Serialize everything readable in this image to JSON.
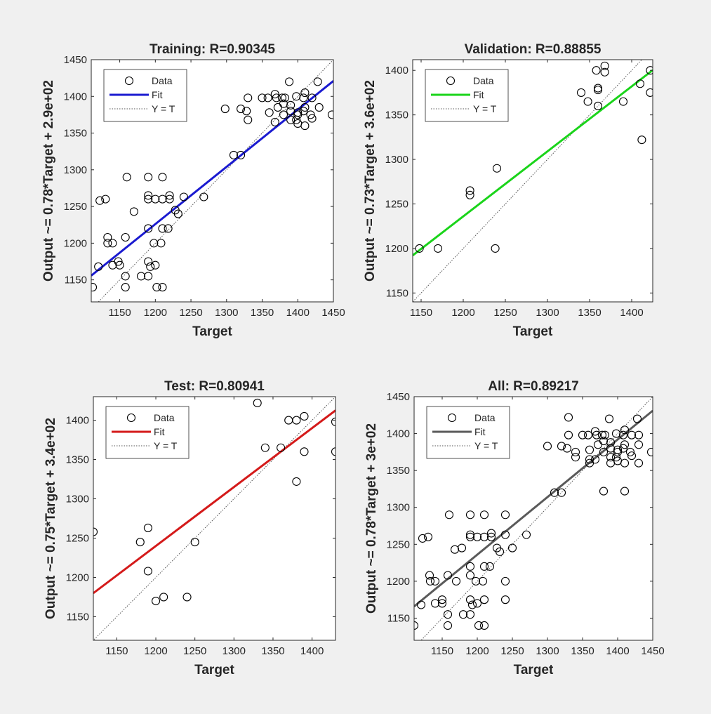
{
  "colors": {
    "background": "#f0f0f0",
    "axes_bg": "#ffffff",
    "data_marker": "#000000",
    "identity_line": "#555555"
  },
  "legend_labels": {
    "data": "Data",
    "fit": "Fit",
    "identity": "Y = T"
  },
  "chart_data": [
    {
      "type": "scatter",
      "title": "Training: R=0.90345",
      "xlabel": "Target",
      "ylabel": "Output ~= 0.78*Target + 2.9e+02",
      "xlim": [
        1110,
        1450
      ],
      "ylim": [
        1120,
        1450
      ],
      "xticks": [
        1150,
        1200,
        1250,
        1300,
        1350,
        1400,
        1450
      ],
      "yticks": [
        1150,
        1200,
        1250,
        1300,
        1350,
        1400,
        1450
      ],
      "fit": {
        "slope": 0.78,
        "intercept": 290,
        "color": "#1a1ad0"
      },
      "legend": "top-left",
      "grid": false,
      "points": [
        [
          1112,
          1140
        ],
        [
          1120,
          1168
        ],
        [
          1122,
          1258
        ],
        [
          1130,
          1260
        ],
        [
          1133,
          1208
        ],
        [
          1133,
          1200
        ],
        [
          1140,
          1200
        ],
        [
          1140,
          1170
        ],
        [
          1148,
          1175
        ],
        [
          1150,
          1170
        ],
        [
          1158,
          1155
        ],
        [
          1158,
          1140
        ],
        [
          1158,
          1208
        ],
        [
          1160,
          1290
        ],
        [
          1170,
          1243
        ],
        [
          1180,
          1155
        ],
        [
          1190,
          1155
        ],
        [
          1190,
          1175
        ],
        [
          1190,
          1220
        ],
        [
          1190,
          1260
        ],
        [
          1190,
          1265
        ],
        [
          1190,
          1290
        ],
        [
          1193,
          1168
        ],
        [
          1198,
          1200
        ],
        [
          1200,
          1260
        ],
        [
          1200,
          1170
        ],
        [
          1202,
          1140
        ],
        [
          1208,
          1200
        ],
        [
          1210,
          1260
        ],
        [
          1210,
          1290
        ],
        [
          1210,
          1140
        ],
        [
          1210,
          1220
        ],
        [
          1218,
          1220
        ],
        [
          1220,
          1265
        ],
        [
          1220,
          1260
        ],
        [
          1228,
          1245
        ],
        [
          1232,
          1240
        ],
        [
          1240,
          1263
        ],
        [
          1268,
          1263
        ],
        [
          1298,
          1383
        ],
        [
          1310,
          1320
        ],
        [
          1320,
          1320
        ],
        [
          1320,
          1383
        ],
        [
          1328,
          1380
        ],
        [
          1330,
          1398
        ],
        [
          1330,
          1368
        ],
        [
          1350,
          1398
        ],
        [
          1358,
          1398
        ],
        [
          1360,
          1378
        ],
        [
          1368,
          1365
        ],
        [
          1368,
          1403
        ],
        [
          1370,
          1398
        ],
        [
          1372,
          1385
        ],
        [
          1378,
          1398
        ],
        [
          1380,
          1390
        ],
        [
          1380,
          1375
        ],
        [
          1382,
          1398
        ],
        [
          1388,
          1420
        ],
        [
          1390,
          1368
        ],
        [
          1390,
          1380
        ],
        [
          1390,
          1388
        ],
        [
          1398,
          1400
        ],
        [
          1398,
          1368
        ],
        [
          1400,
          1375
        ],
        [
          1400,
          1378
        ],
        [
          1400,
          1363
        ],
        [
          1408,
          1398
        ],
        [
          1408,
          1380
        ],
        [
          1410,
          1405
        ],
        [
          1410,
          1360
        ],
        [
          1410,
          1385
        ],
        [
          1418,
          1375
        ],
        [
          1420,
          1398
        ],
        [
          1420,
          1370
        ],
        [
          1428,
          1420
        ],
        [
          1430,
          1385
        ],
        [
          1448,
          1375
        ]
      ]
    },
    {
      "type": "scatter",
      "title": "Validation: R=0.88855",
      "xlabel": "Target",
      "ylabel": "Output ~= 0.73*Target + 3.6e+02",
      "xlim": [
        1140,
        1425
      ],
      "ylim": [
        1140,
        1412
      ],
      "xticks": [
        1150,
        1200,
        1250,
        1300,
        1350,
        1400
      ],
      "yticks": [
        1150,
        1200,
        1250,
        1300,
        1350,
        1400
      ],
      "fit": {
        "slope": 0.73,
        "intercept": 360,
        "color": "#1ad41a"
      },
      "legend": "top-left",
      "grid": false,
      "points": [
        [
          1148,
          1200
        ],
        [
          1170,
          1200
        ],
        [
          1208,
          1260
        ],
        [
          1208,
          1265
        ],
        [
          1238,
          1200
        ],
        [
          1240,
          1290
        ],
        [
          1340,
          1375
        ],
        [
          1348,
          1365
        ],
        [
          1358,
          1400
        ],
        [
          1360,
          1360
        ],
        [
          1360,
          1380
        ],
        [
          1360,
          1378
        ],
        [
          1368,
          1405
        ],
        [
          1368,
          1398
        ],
        [
          1390,
          1365
        ],
        [
          1410,
          1385
        ],
        [
          1412,
          1322
        ],
        [
          1422,
          1400
        ],
        [
          1422,
          1375
        ]
      ]
    },
    {
      "type": "scatter",
      "title": "Test: R=0.80941",
      "xlabel": "Target",
      "ylabel": "Output ~= 0.75*Target + 3.4e+02",
      "xlim": [
        1120,
        1430
      ],
      "ylim": [
        1120,
        1430
      ],
      "xticks": [
        1150,
        1200,
        1250,
        1300,
        1350,
        1400
      ],
      "yticks": [
        1150,
        1200,
        1250,
        1300,
        1350,
        1400
      ],
      "fit": {
        "slope": 0.75,
        "intercept": 340,
        "color": "#d41a1a"
      },
      "legend": "top-left",
      "grid": false,
      "points": [
        [
          1120,
          1258
        ],
        [
          1180,
          1245
        ],
        [
          1190,
          1208
        ],
        [
          1190,
          1263
        ],
        [
          1200,
          1170
        ],
        [
          1210,
          1175
        ],
        [
          1240,
          1175
        ],
        [
          1250,
          1245
        ],
        [
          1330,
          1422
        ],
        [
          1340,
          1365
        ],
        [
          1360,
          1365
        ],
        [
          1370,
          1400
        ],
        [
          1380,
          1400
        ],
        [
          1380,
          1322
        ],
        [
          1390,
          1360
        ],
        [
          1390,
          1405
        ],
        [
          1430,
          1398
        ],
        [
          1430,
          1360
        ]
      ]
    },
    {
      "type": "scatter",
      "title": "All: R=0.89217",
      "xlabel": "Target",
      "ylabel": "Output ~= 0.78*Target + 3e+02",
      "xlim": [
        1110,
        1450
      ],
      "ylim": [
        1120,
        1450
      ],
      "xticks": [
        1150,
        1200,
        1250,
        1300,
        1350,
        1400,
        1450
      ],
      "yticks": [
        1150,
        1200,
        1250,
        1300,
        1350,
        1400,
        1450
      ],
      "fit": {
        "slope": 0.78,
        "intercept": 300,
        "color": "#5a5a5a"
      },
      "legend": "top-left",
      "grid": false,
      "points": [
        [
          1110,
          1140
        ],
        [
          1120,
          1168
        ],
        [
          1122,
          1258
        ],
        [
          1130,
          1260
        ],
        [
          1132,
          1208
        ],
        [
          1133,
          1200
        ],
        [
          1140,
          1200
        ],
        [
          1140,
          1170
        ],
        [
          1150,
          1175
        ],
        [
          1150,
          1170
        ],
        [
          1158,
          1155
        ],
        [
          1158,
          1140
        ],
        [
          1158,
          1208
        ],
        [
          1160,
          1290
        ],
        [
          1168,
          1243
        ],
        [
          1170,
          1200
        ],
        [
          1178,
          1245
        ],
        [
          1180,
          1155
        ],
        [
          1190,
          1155
        ],
        [
          1190,
          1175
        ],
        [
          1190,
          1208
        ],
        [
          1190,
          1220
        ],
        [
          1190,
          1260
        ],
        [
          1190,
          1263
        ],
        [
          1190,
          1290
        ],
        [
          1193,
          1168
        ],
        [
          1198,
          1200
        ],
        [
          1200,
          1260
        ],
        [
          1200,
          1170
        ],
        [
          1202,
          1140
        ],
        [
          1208,
          1200
        ],
        [
          1210,
          1260
        ],
        [
          1210,
          1290
        ],
        [
          1210,
          1140
        ],
        [
          1210,
          1220
        ],
        [
          1210,
          1175
        ],
        [
          1218,
          1220
        ],
        [
          1220,
          1265
        ],
        [
          1220,
          1260
        ],
        [
          1228,
          1245
        ],
        [
          1232,
          1240
        ],
        [
          1240,
          1263
        ],
        [
          1240,
          1175
        ],
        [
          1240,
          1200
        ],
        [
          1240,
          1290
        ],
        [
          1250,
          1245
        ],
        [
          1270,
          1263
        ],
        [
          1300,
          1383
        ],
        [
          1310,
          1320
        ],
        [
          1320,
          1320
        ],
        [
          1320,
          1383
        ],
        [
          1328,
          1380
        ],
        [
          1330,
          1398
        ],
        [
          1330,
          1422
        ],
        [
          1340,
          1368
        ],
        [
          1340,
          1375
        ],
        [
          1350,
          1398
        ],
        [
          1358,
          1398
        ],
        [
          1360,
          1378
        ],
        [
          1360,
          1365
        ],
        [
          1360,
          1360
        ],
        [
          1368,
          1365
        ],
        [
          1368,
          1403
        ],
        [
          1370,
          1398
        ],
        [
          1372,
          1385
        ],
        [
          1378,
          1398
        ],
        [
          1380,
          1390
        ],
        [
          1380,
          1375
        ],
        [
          1380,
          1322
        ],
        [
          1382,
          1398
        ],
        [
          1388,
          1420
        ],
        [
          1390,
          1368
        ],
        [
          1390,
          1380
        ],
        [
          1390,
          1388
        ],
        [
          1390,
          1360
        ],
        [
          1398,
          1400
        ],
        [
          1398,
          1368
        ],
        [
          1400,
          1375
        ],
        [
          1400,
          1378
        ],
        [
          1400,
          1363
        ],
        [
          1408,
          1398
        ],
        [
          1408,
          1380
        ],
        [
          1410,
          1405
        ],
        [
          1410,
          1360
        ],
        [
          1410,
          1385
        ],
        [
          1410,
          1322
        ],
        [
          1418,
          1375
        ],
        [
          1420,
          1398
        ],
        [
          1420,
          1370
        ],
        [
          1428,
          1420
        ],
        [
          1430,
          1385
        ],
        [
          1430,
          1360
        ],
        [
          1430,
          1398
        ],
        [
          1448,
          1375
        ]
      ]
    }
  ]
}
